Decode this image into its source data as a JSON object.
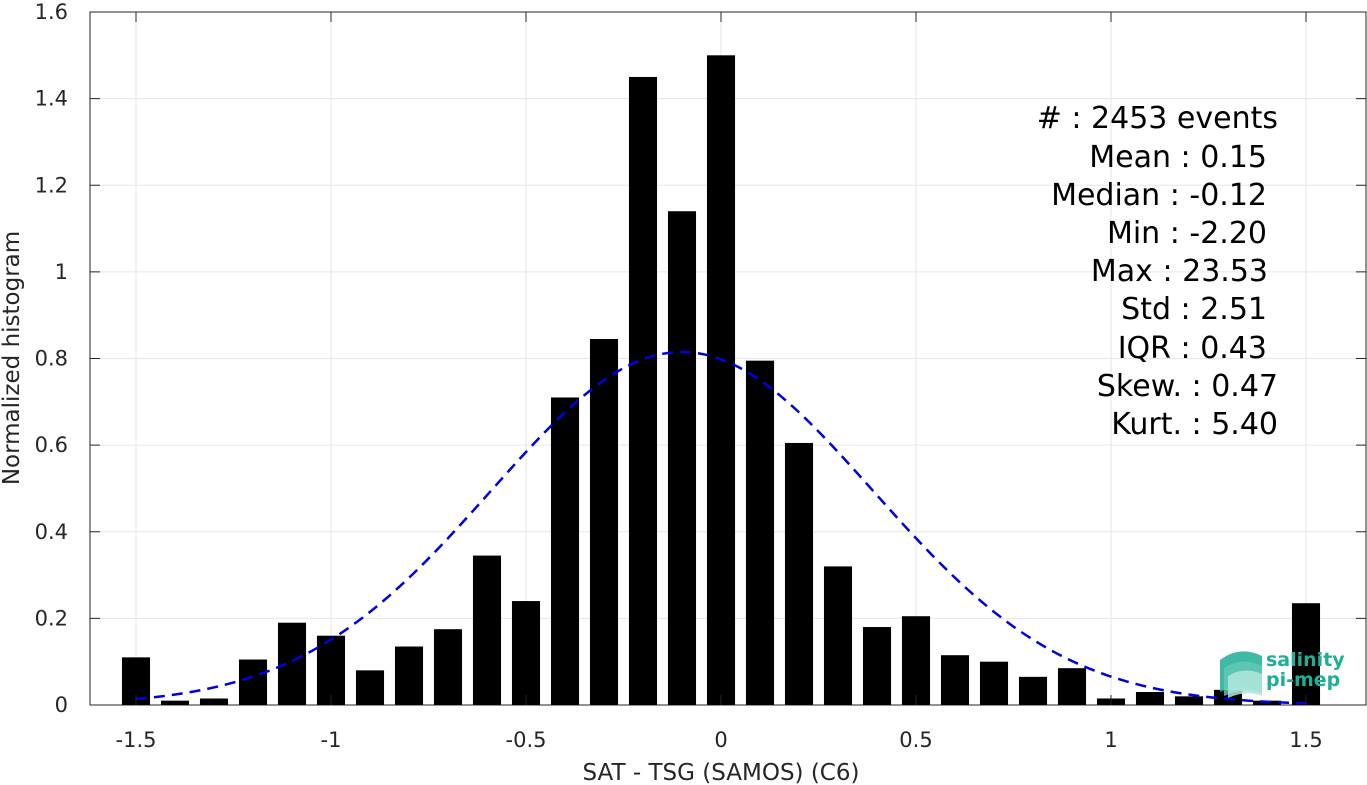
{
  "chart_data": {
    "type": "bar",
    "xlabel": "SAT - TSG (SAMOS) (C6)",
    "ylabel": "Normalized histogram",
    "xlim": [
      -1.55,
      1.55
    ],
    "ylim": [
      0,
      1.6
    ],
    "xticks": [
      -1.5,
      -1,
      -0.5,
      0,
      0.5,
      1,
      1.5
    ],
    "xtick_labels": [
      "-1.5",
      "-1",
      "-0.5",
      "0",
      "0.5",
      "1",
      "1.5"
    ],
    "yticks": [
      0,
      0.2,
      0.4,
      0.6,
      0.8,
      1,
      1.2,
      1.4,
      1.6
    ],
    "ytick_labels": [
      "0",
      "0.2",
      "0.4",
      "0.6",
      "0.8",
      "1",
      "1.2",
      "1.4",
      "1.6"
    ],
    "grid": true,
    "bin_width": 0.1,
    "bars": [
      {
        "x": -1.5,
        "y": 0.11
      },
      {
        "x": -1.4,
        "y": 0.01
      },
      {
        "x": -1.3,
        "y": 0.015
      },
      {
        "x": -1.2,
        "y": 0.105
      },
      {
        "x": -1.1,
        "y": 0.19
      },
      {
        "x": -1.0,
        "y": 0.16
      },
      {
        "x": -0.9,
        "y": 0.08
      },
      {
        "x": -0.8,
        "y": 0.135
      },
      {
        "x": -0.7,
        "y": 0.175
      },
      {
        "x": -0.6,
        "y": 0.345
      },
      {
        "x": -0.5,
        "y": 0.24
      },
      {
        "x": -0.4,
        "y": 0.71
      },
      {
        "x": -0.3,
        "y": 0.845
      },
      {
        "x": -0.2,
        "y": 1.45
      },
      {
        "x": -0.1,
        "y": 1.14
      },
      {
        "x": 0.0,
        "y": 1.5
      },
      {
        "x": 0.1,
        "y": 0.795
      },
      {
        "x": 0.2,
        "y": 0.605
      },
      {
        "x": 0.3,
        "y": 0.32
      },
      {
        "x": 0.4,
        "y": 0.18
      },
      {
        "x": 0.5,
        "y": 0.205
      },
      {
        "x": 0.6,
        "y": 0.115
      },
      {
        "x": 0.7,
        "y": 0.1
      },
      {
        "x": 0.8,
        "y": 0.065
      },
      {
        "x": 0.9,
        "y": 0.085
      },
      {
        "x": 1.0,
        "y": 0.015
      },
      {
        "x": 1.1,
        "y": 0.03
      },
      {
        "x": 1.2,
        "y": 0.02
      },
      {
        "x": 1.3,
        "y": 0.035
      },
      {
        "x": 1.4,
        "y": 0.01
      },
      {
        "x": 1.5,
        "y": 0.235
      }
    ],
    "fit_curve": {
      "style": "dashed",
      "color": "#0000e0",
      "x_range": [
        -1.5,
        1.5
      ],
      "mean": -0.1,
      "std": 0.49,
      "peak": 0.815
    },
    "bar_color": "#000000"
  },
  "stats": {
    "count": "#  : 2453 events",
    "mean": "Mean : 0.15",
    "median": "Median : -0.12",
    "min": "Min : -2.20",
    "max": "Max : 23.53",
    "std": "Std : 2.51",
    "iqr": "IQR : 0.43",
    "skew": "Skew. : 0.47",
    "kurt": "Kurt. : 5.40"
  },
  "logo": {
    "line1": "salinity",
    "line2": "pi-mep"
  }
}
